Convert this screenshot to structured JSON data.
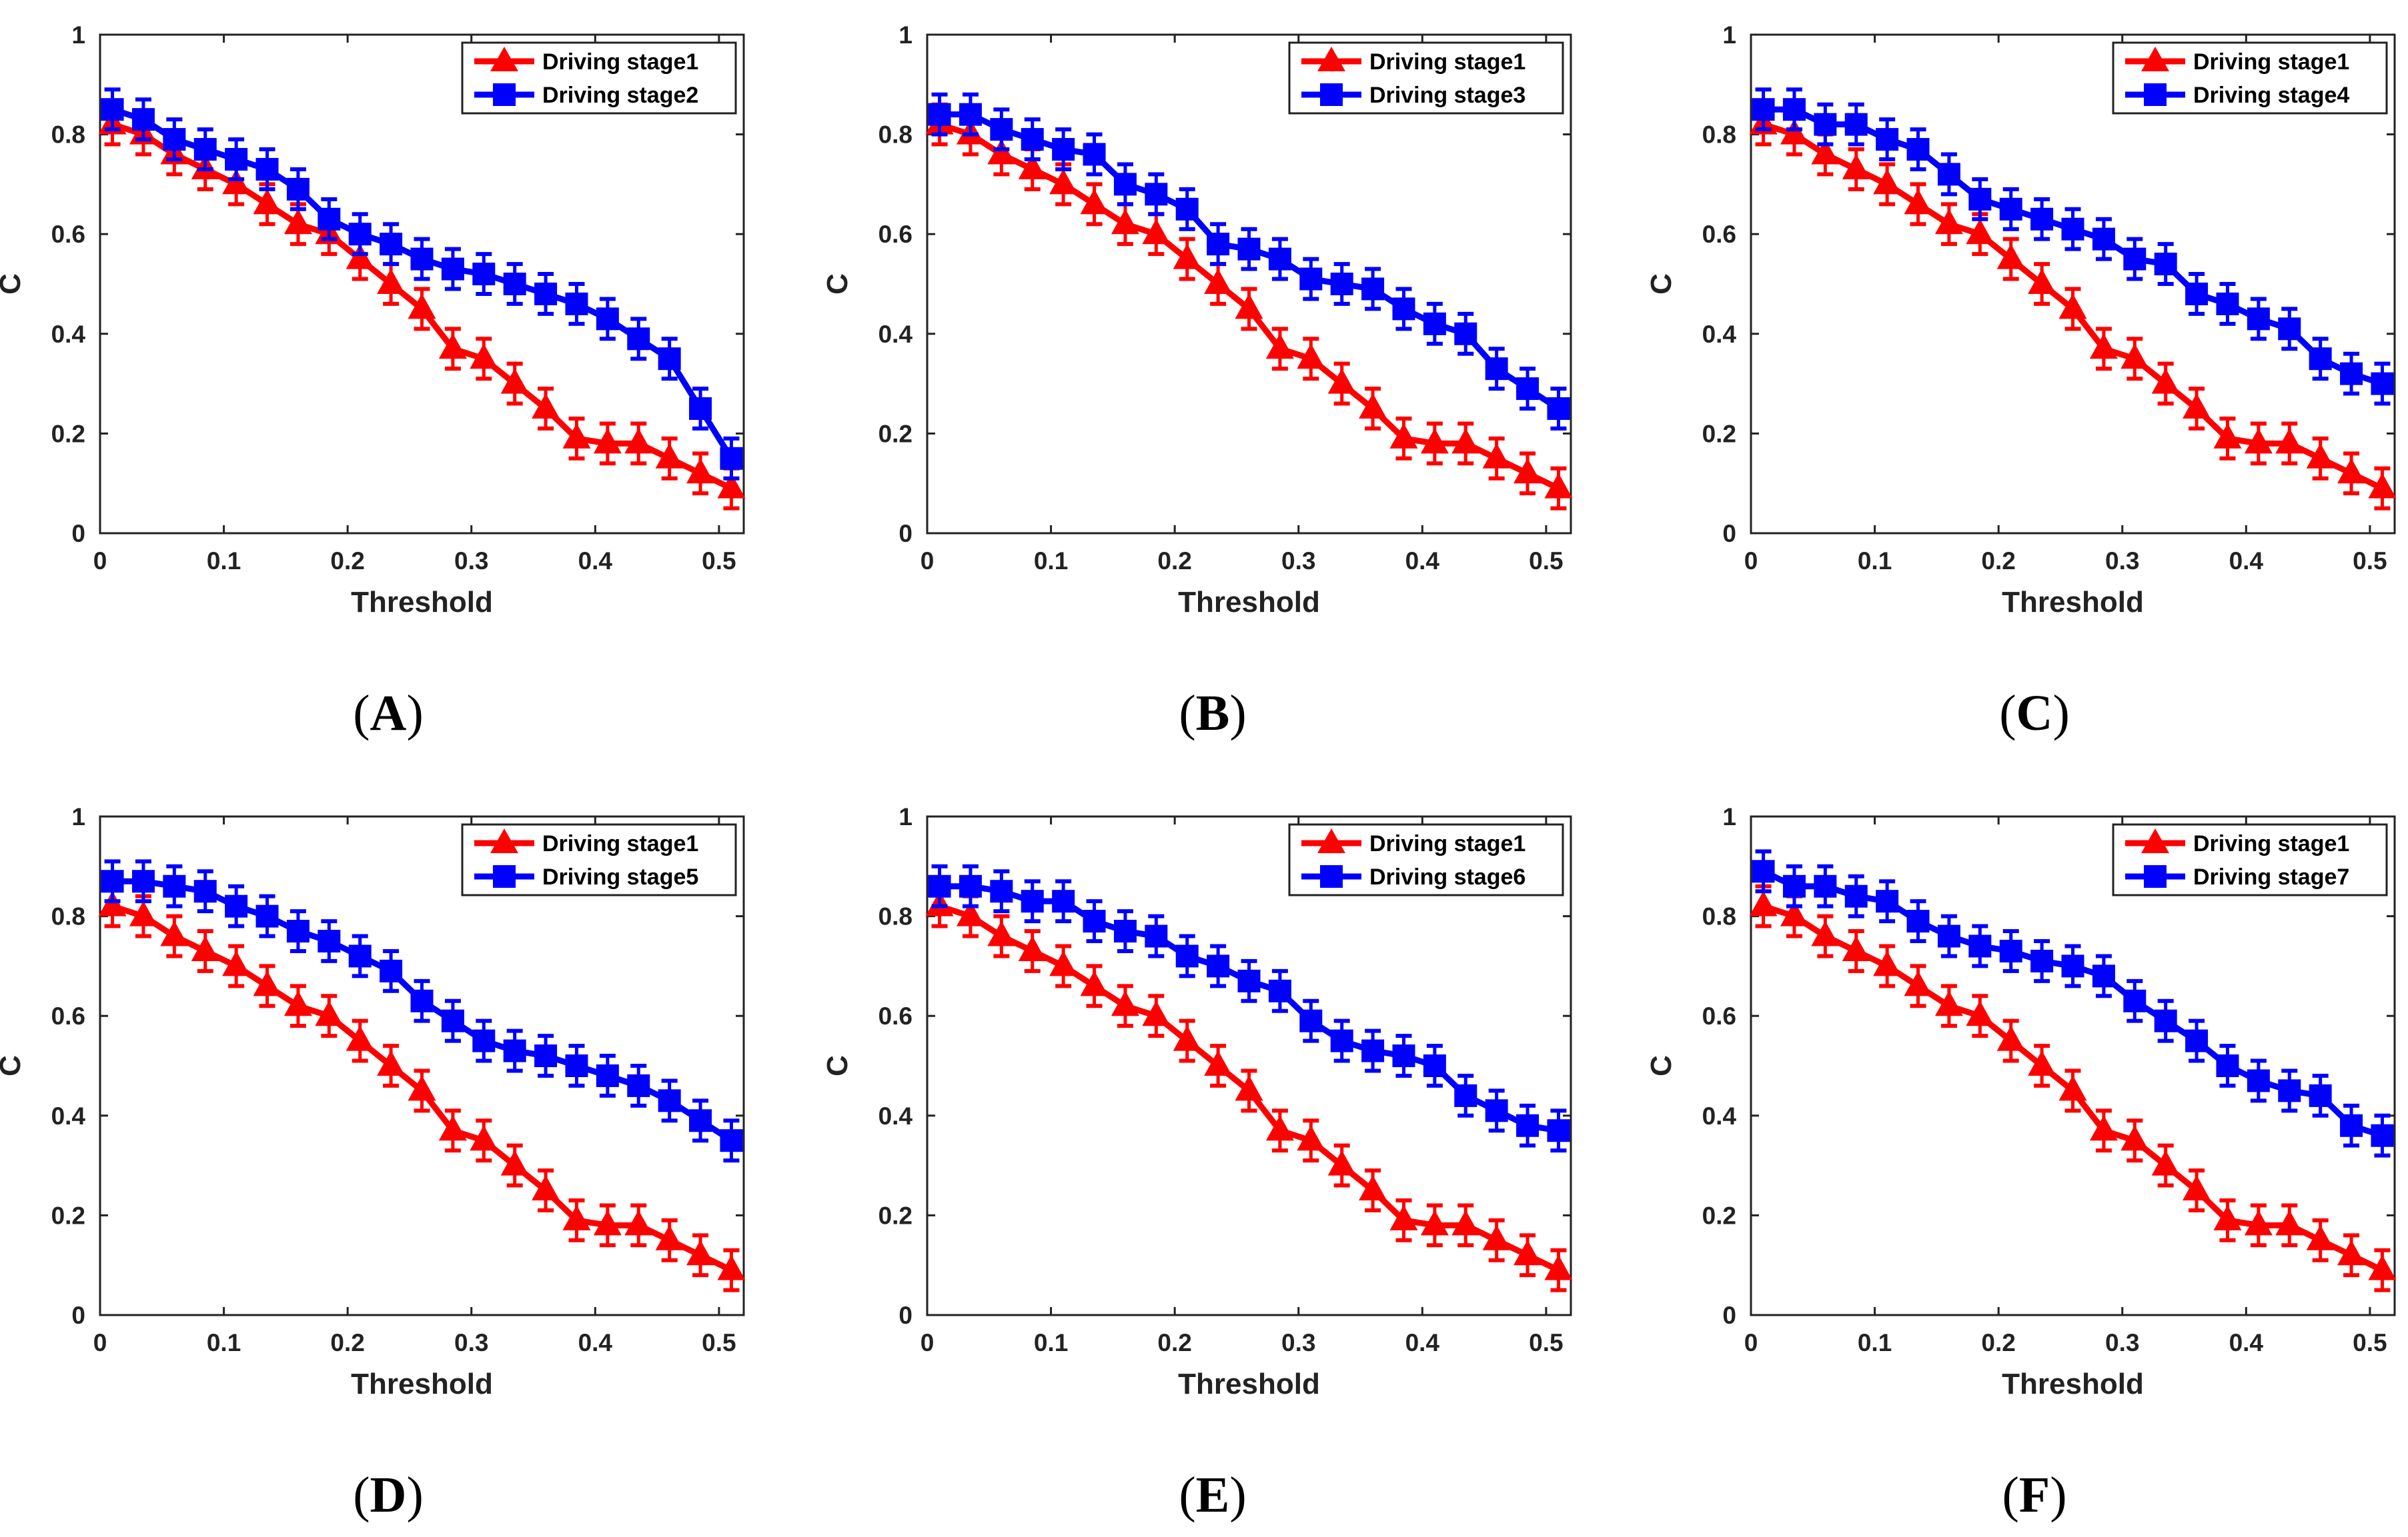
{
  "colors": {
    "series_a": "#ff0000",
    "series_b": "#0000ff",
    "axis": "#222222"
  },
  "chart_data": [
    {
      "panel": "A",
      "type": "line",
      "xlabel": "Threshold",
      "ylabel": "C",
      "xlim": [
        0,
        0.52
      ],
      "ylim": [
        0,
        1
      ],
      "xticks": [
        0,
        0.1,
        0.2,
        0.3,
        0.4,
        0.5
      ],
      "yticks": [
        0,
        0.2,
        0.4,
        0.6,
        0.8,
        1
      ],
      "legend": "top-right",
      "x": [
        0.01,
        0.035,
        0.06,
        0.085,
        0.11,
        0.135,
        0.16,
        0.185,
        0.21,
        0.235,
        0.26,
        0.285,
        0.31,
        0.335,
        0.36,
        0.385,
        0.41,
        0.435,
        0.46,
        0.485,
        0.51
      ],
      "series": [
        {
          "name": "Driving stage1",
          "color": "#ff0000",
          "marker": "triangle",
          "values": [
            0.82,
            0.8,
            0.76,
            0.73,
            0.7,
            0.66,
            0.62,
            0.6,
            0.55,
            0.5,
            0.45,
            0.37,
            0.35,
            0.3,
            0.25,
            0.19,
            0.18,
            0.18,
            0.15,
            0.12,
            0.09
          ],
          "errors": [
            0.04,
            0.04,
            0.04,
            0.04,
            0.04,
            0.04,
            0.04,
            0.04,
            0.04,
            0.04,
            0.04,
            0.04,
            0.04,
            0.04,
            0.04,
            0.04,
            0.04,
            0.04,
            0.04,
            0.04,
            0.04
          ]
        },
        {
          "name": "Driving stage2",
          "color": "#0000ff",
          "marker": "square",
          "values": [
            0.85,
            0.83,
            0.79,
            0.77,
            0.75,
            0.73,
            0.69,
            0.63,
            0.6,
            0.58,
            0.55,
            0.53,
            0.52,
            0.5,
            0.48,
            0.46,
            0.43,
            0.39,
            0.35,
            0.25,
            0.15
          ],
          "errors": [
            0.04,
            0.04,
            0.04,
            0.04,
            0.04,
            0.04,
            0.04,
            0.04,
            0.04,
            0.04,
            0.04,
            0.04,
            0.04,
            0.04,
            0.04,
            0.04,
            0.04,
            0.04,
            0.04,
            0.04,
            0.04
          ]
        }
      ]
    },
    {
      "panel": "B",
      "type": "line",
      "xlabel": "Threshold",
      "ylabel": "C",
      "xlim": [
        0,
        0.52
      ],
      "ylim": [
        0,
        1
      ],
      "xticks": [
        0,
        0.1,
        0.2,
        0.3,
        0.4,
        0.5
      ],
      "yticks": [
        0,
        0.2,
        0.4,
        0.6,
        0.8,
        1
      ],
      "legend": "top-right",
      "x": [
        0.01,
        0.035,
        0.06,
        0.085,
        0.11,
        0.135,
        0.16,
        0.185,
        0.21,
        0.235,
        0.26,
        0.285,
        0.31,
        0.335,
        0.36,
        0.385,
        0.41,
        0.435,
        0.46,
        0.485,
        0.51
      ],
      "series": [
        {
          "name": "Driving stage1",
          "color": "#ff0000",
          "marker": "triangle",
          "values": [
            0.82,
            0.8,
            0.76,
            0.73,
            0.7,
            0.66,
            0.62,
            0.6,
            0.55,
            0.5,
            0.45,
            0.37,
            0.35,
            0.3,
            0.25,
            0.19,
            0.18,
            0.18,
            0.15,
            0.12,
            0.09
          ],
          "errors": [
            0.04,
            0.04,
            0.04,
            0.04,
            0.04,
            0.04,
            0.04,
            0.04,
            0.04,
            0.04,
            0.04,
            0.04,
            0.04,
            0.04,
            0.04,
            0.04,
            0.04,
            0.04,
            0.04,
            0.04,
            0.04
          ]
        },
        {
          "name": "Driving stage3",
          "color": "#0000ff",
          "marker": "square",
          "values": [
            0.84,
            0.84,
            0.81,
            0.79,
            0.77,
            0.76,
            0.7,
            0.68,
            0.65,
            0.58,
            0.57,
            0.55,
            0.51,
            0.5,
            0.49,
            0.45,
            0.42,
            0.4,
            0.33,
            0.29,
            0.25
          ],
          "errors": [
            0.04,
            0.04,
            0.04,
            0.04,
            0.04,
            0.04,
            0.04,
            0.04,
            0.04,
            0.04,
            0.04,
            0.04,
            0.04,
            0.04,
            0.04,
            0.04,
            0.04,
            0.04,
            0.04,
            0.04,
            0.04
          ]
        }
      ]
    },
    {
      "panel": "C",
      "type": "line",
      "xlabel": "Threshold",
      "ylabel": "C",
      "xlim": [
        0,
        0.52
      ],
      "ylim": [
        0,
        1
      ],
      "xticks": [
        0,
        0.1,
        0.2,
        0.3,
        0.4,
        0.5
      ],
      "yticks": [
        0,
        0.2,
        0.4,
        0.6,
        0.8,
        1
      ],
      "legend": "top-right",
      "x": [
        0.01,
        0.035,
        0.06,
        0.085,
        0.11,
        0.135,
        0.16,
        0.185,
        0.21,
        0.235,
        0.26,
        0.285,
        0.31,
        0.335,
        0.36,
        0.385,
        0.41,
        0.435,
        0.46,
        0.485,
        0.51
      ],
      "series": [
        {
          "name": "Driving stage1",
          "color": "#ff0000",
          "marker": "triangle",
          "values": [
            0.82,
            0.8,
            0.76,
            0.73,
            0.7,
            0.66,
            0.62,
            0.6,
            0.55,
            0.5,
            0.45,
            0.37,
            0.35,
            0.3,
            0.25,
            0.19,
            0.18,
            0.18,
            0.15,
            0.12,
            0.09
          ],
          "errors": [
            0.04,
            0.04,
            0.04,
            0.04,
            0.04,
            0.04,
            0.04,
            0.04,
            0.04,
            0.04,
            0.04,
            0.04,
            0.04,
            0.04,
            0.04,
            0.04,
            0.04,
            0.04,
            0.04,
            0.04,
            0.04
          ]
        },
        {
          "name": "Driving stage4",
          "color": "#0000ff",
          "marker": "square",
          "values": [
            0.85,
            0.85,
            0.82,
            0.82,
            0.79,
            0.77,
            0.72,
            0.67,
            0.65,
            0.63,
            0.61,
            0.59,
            0.55,
            0.54,
            0.48,
            0.46,
            0.43,
            0.41,
            0.35,
            0.32,
            0.3
          ],
          "errors": [
            0.04,
            0.04,
            0.04,
            0.04,
            0.04,
            0.04,
            0.04,
            0.04,
            0.04,
            0.04,
            0.04,
            0.04,
            0.04,
            0.04,
            0.04,
            0.04,
            0.04,
            0.04,
            0.04,
            0.04,
            0.04
          ]
        }
      ]
    },
    {
      "panel": "D",
      "type": "line",
      "xlabel": "Threshold",
      "ylabel": "C",
      "xlim": [
        0,
        0.52
      ],
      "ylim": [
        0,
        1
      ],
      "xticks": [
        0,
        0.1,
        0.2,
        0.3,
        0.4,
        0.5
      ],
      "yticks": [
        0,
        0.2,
        0.4,
        0.6,
        0.8,
        1
      ],
      "legend": "top-right",
      "x": [
        0.01,
        0.035,
        0.06,
        0.085,
        0.11,
        0.135,
        0.16,
        0.185,
        0.21,
        0.235,
        0.26,
        0.285,
        0.31,
        0.335,
        0.36,
        0.385,
        0.41,
        0.435,
        0.46,
        0.485,
        0.51
      ],
      "series": [
        {
          "name": "Driving stage1",
          "color": "#ff0000",
          "marker": "triangle",
          "values": [
            0.82,
            0.8,
            0.76,
            0.73,
            0.7,
            0.66,
            0.62,
            0.6,
            0.55,
            0.5,
            0.45,
            0.37,
            0.35,
            0.3,
            0.25,
            0.19,
            0.18,
            0.18,
            0.15,
            0.12,
            0.09
          ],
          "errors": [
            0.04,
            0.04,
            0.04,
            0.04,
            0.04,
            0.04,
            0.04,
            0.04,
            0.04,
            0.04,
            0.04,
            0.04,
            0.04,
            0.04,
            0.04,
            0.04,
            0.04,
            0.04,
            0.04,
            0.04,
            0.04
          ]
        },
        {
          "name": "Driving stage5",
          "color": "#0000ff",
          "marker": "square",
          "values": [
            0.87,
            0.87,
            0.86,
            0.85,
            0.82,
            0.8,
            0.77,
            0.75,
            0.72,
            0.69,
            0.63,
            0.59,
            0.55,
            0.53,
            0.52,
            0.5,
            0.48,
            0.46,
            0.43,
            0.39,
            0.35
          ],
          "errors": [
            0.04,
            0.04,
            0.04,
            0.04,
            0.04,
            0.04,
            0.04,
            0.04,
            0.04,
            0.04,
            0.04,
            0.04,
            0.04,
            0.04,
            0.04,
            0.04,
            0.04,
            0.04,
            0.04,
            0.04,
            0.04
          ]
        }
      ]
    },
    {
      "panel": "E",
      "type": "line",
      "xlabel": "Threshold",
      "ylabel": "C",
      "xlim": [
        0,
        0.52
      ],
      "ylim": [
        0,
        1
      ],
      "xticks": [
        0,
        0.1,
        0.2,
        0.3,
        0.4,
        0.5
      ],
      "yticks": [
        0,
        0.2,
        0.4,
        0.6,
        0.8,
        1
      ],
      "legend": "top-right",
      "x": [
        0.01,
        0.035,
        0.06,
        0.085,
        0.11,
        0.135,
        0.16,
        0.185,
        0.21,
        0.235,
        0.26,
        0.285,
        0.31,
        0.335,
        0.36,
        0.385,
        0.41,
        0.435,
        0.46,
        0.485,
        0.51
      ],
      "series": [
        {
          "name": "Driving stage1",
          "color": "#ff0000",
          "marker": "triangle",
          "values": [
            0.82,
            0.8,
            0.76,
            0.73,
            0.7,
            0.66,
            0.62,
            0.6,
            0.55,
            0.5,
            0.45,
            0.37,
            0.35,
            0.3,
            0.25,
            0.19,
            0.18,
            0.18,
            0.15,
            0.12,
            0.09
          ],
          "errors": [
            0.04,
            0.04,
            0.04,
            0.04,
            0.04,
            0.04,
            0.04,
            0.04,
            0.04,
            0.04,
            0.04,
            0.04,
            0.04,
            0.04,
            0.04,
            0.04,
            0.04,
            0.04,
            0.04,
            0.04,
            0.04
          ]
        },
        {
          "name": "Driving stage6",
          "color": "#0000ff",
          "marker": "square",
          "values": [
            0.86,
            0.86,
            0.85,
            0.83,
            0.83,
            0.79,
            0.77,
            0.76,
            0.72,
            0.7,
            0.67,
            0.65,
            0.59,
            0.55,
            0.53,
            0.52,
            0.5,
            0.44,
            0.41,
            0.38,
            0.37
          ],
          "errors": [
            0.04,
            0.04,
            0.04,
            0.04,
            0.04,
            0.04,
            0.04,
            0.04,
            0.04,
            0.04,
            0.04,
            0.04,
            0.04,
            0.04,
            0.04,
            0.04,
            0.04,
            0.04,
            0.04,
            0.04,
            0.04
          ]
        }
      ]
    },
    {
      "panel": "F",
      "type": "line",
      "xlabel": "Threshold",
      "ylabel": "C",
      "xlim": [
        0,
        0.52
      ],
      "ylim": [
        0,
        1
      ],
      "xticks": [
        0,
        0.1,
        0.2,
        0.3,
        0.4,
        0.5
      ],
      "yticks": [
        0,
        0.2,
        0.4,
        0.6,
        0.8,
        1
      ],
      "legend": "top-right",
      "x": [
        0.01,
        0.035,
        0.06,
        0.085,
        0.11,
        0.135,
        0.16,
        0.185,
        0.21,
        0.235,
        0.26,
        0.285,
        0.31,
        0.335,
        0.36,
        0.385,
        0.41,
        0.435,
        0.46,
        0.485,
        0.51
      ],
      "series": [
        {
          "name": "Driving stage1",
          "color": "#ff0000",
          "marker": "triangle",
          "values": [
            0.82,
            0.8,
            0.76,
            0.73,
            0.7,
            0.66,
            0.62,
            0.6,
            0.55,
            0.5,
            0.45,
            0.37,
            0.35,
            0.3,
            0.25,
            0.19,
            0.18,
            0.18,
            0.15,
            0.12,
            0.09
          ],
          "errors": [
            0.04,
            0.04,
            0.04,
            0.04,
            0.04,
            0.04,
            0.04,
            0.04,
            0.04,
            0.04,
            0.04,
            0.04,
            0.04,
            0.04,
            0.04,
            0.04,
            0.04,
            0.04,
            0.04,
            0.04,
            0.04
          ]
        },
        {
          "name": "Driving stage7",
          "color": "#0000ff",
          "marker": "square",
          "values": [
            0.89,
            0.86,
            0.86,
            0.84,
            0.83,
            0.79,
            0.76,
            0.74,
            0.73,
            0.71,
            0.7,
            0.68,
            0.63,
            0.59,
            0.55,
            0.5,
            0.47,
            0.45,
            0.44,
            0.38,
            0.36
          ],
          "errors": [
            0.04,
            0.04,
            0.04,
            0.04,
            0.04,
            0.04,
            0.04,
            0.04,
            0.04,
            0.04,
            0.04,
            0.04,
            0.04,
            0.04,
            0.04,
            0.04,
            0.04,
            0.04,
            0.04,
            0.04,
            0.04
          ]
        }
      ]
    }
  ]
}
